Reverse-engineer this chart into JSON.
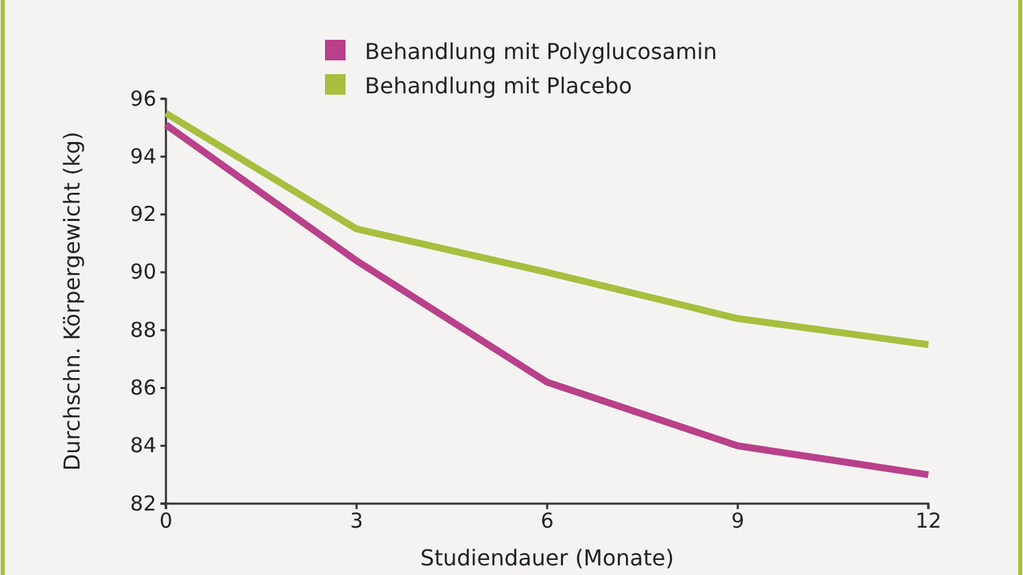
{
  "chart_data": {
    "type": "line",
    "xlabel": "Studiendauer (Monate)",
    "ylabel": "Durchschn. Körpergewicht (kg)",
    "x": [
      0,
      3,
      6,
      9,
      12
    ],
    "series": [
      {
        "name": "Behandlung mit Polyglucosamin",
        "color": "#b9408a",
        "values": [
          95.1,
          90.4,
          86.2,
          84.0,
          83.0
        ]
      },
      {
        "name": "Behandlung mit Placebo",
        "color": "#a6bf3e",
        "values": [
          95.5,
          91.5,
          90.0,
          88.4,
          87.5
        ]
      }
    ],
    "xlim": [
      0,
      12
    ],
    "xticks": [
      0,
      3,
      6,
      9,
      12
    ],
    "ylim": [
      82,
      96
    ],
    "yticks": [
      82,
      84,
      86,
      88,
      90,
      92,
      94,
      96
    ],
    "grid": false,
    "legend": "top",
    "marker": "none",
    "line_style": "solid"
  }
}
